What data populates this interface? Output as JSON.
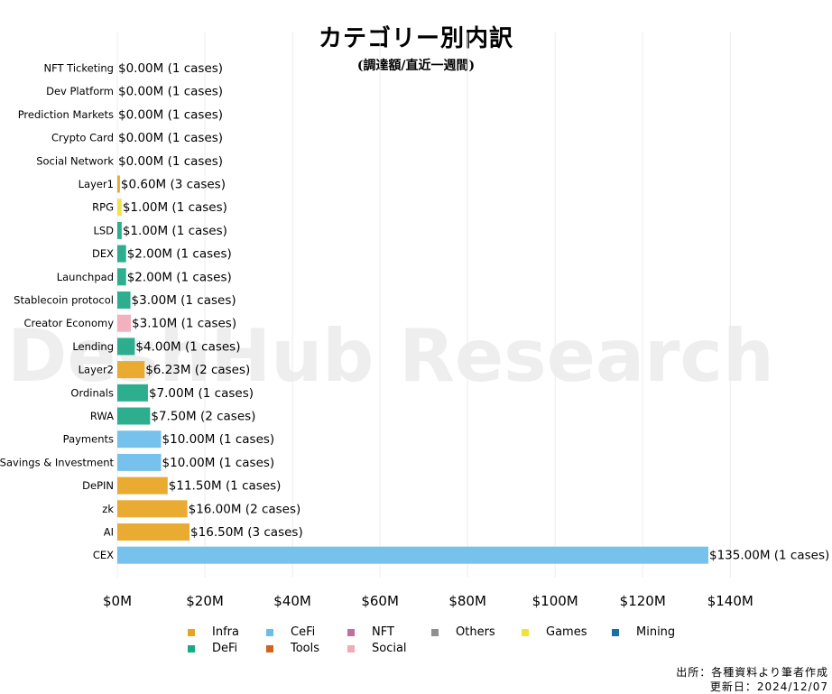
{
  "title": "カテゴリー別内訳",
  "subtitle": "(調達額/直近一週間)",
  "watermark": "DeshHub Research",
  "source": {
    "line1": "出所：各種資料より筆者作成",
    "line2": "更新日：2024/12/07"
  },
  "legend": [
    {
      "name": "Infra",
      "color": "#E8A421"
    },
    {
      "name": "CeFi",
      "color": "#6BBDEB"
    },
    {
      "name": "NFT",
      "color": "#C46E9E"
    },
    {
      "name": "Others",
      "color": "#8F8F8F"
    },
    {
      "name": "Games",
      "color": "#F0E23C"
    },
    {
      "name": "Mining",
      "color": "#1A6FA5"
    },
    {
      "name": "DeFi",
      "color": "#1BA886"
    },
    {
      "name": "Tools",
      "color": "#D2651C"
    },
    {
      "name": "Social",
      "color": "#F2A9B8"
    }
  ],
  "chart_data": {
    "type": "bar",
    "orientation": "horizontal",
    "title": "カテゴリー別内訳",
    "subtitle": "(調達額/直近一週間)",
    "xlim": [
      0,
      140
    ],
    "x_ticks": [
      "$0M",
      "$20M",
      "$40M",
      "$60M",
      "$80M",
      "$100M",
      "$120M",
      "$140M"
    ],
    "x_tick_values": [
      0,
      20,
      40,
      60,
      80,
      100,
      120,
      140
    ],
    "grid": "vertical",
    "legend_placement": "bottom",
    "categories": [
      "NFT Ticketing",
      "Dev Platform",
      "Prediction Markets",
      "Crypto Card",
      "Social Network",
      "Layer1",
      "RPG",
      "LSD",
      "DEX",
      "Launchpad",
      "Stablecoin protocol",
      "Creator Economy",
      "Lending",
      "Layer2",
      "Ordinals",
      "RWA",
      "Payments",
      "Savings & Investment",
      "DePIN",
      "zk",
      "AI",
      "CEX"
    ],
    "values": [
      0,
      0,
      0,
      0,
      0,
      0.6,
      1.0,
      1.0,
      2.0,
      2.0,
      3.0,
      3.1,
      4.0,
      6.23,
      7.0,
      7.5,
      10.0,
      10.0,
      11.5,
      16.0,
      16.5,
      135.0
    ],
    "group": [
      "Others",
      "Others",
      "Others",
      "Others",
      "Others",
      "Infra",
      "Games",
      "DeFi",
      "DeFi",
      "DeFi",
      "DeFi",
      "Social",
      "DeFi",
      "Infra",
      "DeFi",
      "DeFi",
      "CeFi",
      "CeFi",
      "Infra",
      "Infra",
      "Infra",
      "CeFi"
    ],
    "labels": [
      "$0.00M (1 cases)",
      "$0.00M (1 cases)",
      "$0.00M (1 cases)",
      "$0.00M (1 cases)",
      "$0.00M (1 cases)",
      "$0.60M (3 cases)",
      "$1.00M (1 cases)",
      "$1.00M (1 cases)",
      "$2.00M (1 cases)",
      "$2.00M (1 cases)",
      "$3.00M (1 cases)",
      "$3.10M (1 cases)",
      "$4.00M (1 cases)",
      "$6.23M (2 cases)",
      "$7.00M (1 cases)",
      "$7.50M (2 cases)",
      "$10.00M (1 cases)",
      "$10.00M (1 cases)",
      "$11.50M (1 cases)",
      "$16.00M (2 cases)",
      "$16.50M (3 cases)",
      "$135.00M (1 cases)"
    ],
    "colors": [
      "#8F8F8F",
      "#8F8F8F",
      "#8F8F8F",
      "#8F8F8F",
      "#8F8F8F",
      "#E8A421",
      "#F0E23C",
      "#1BA886",
      "#1BA886",
      "#1BA886",
      "#1BA886",
      "#F2A9B8",
      "#1BA886",
      "#E8A421",
      "#1BA886",
      "#1BA886",
      "#6BBDEB",
      "#6BBDEB",
      "#E8A421",
      "#E8A421",
      "#E8A421",
      "#6BBDEB"
    ]
  }
}
